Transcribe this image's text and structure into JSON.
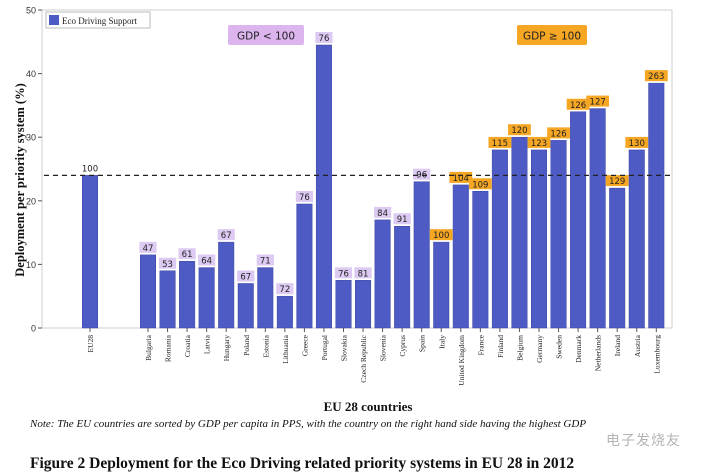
{
  "chart_data": {
    "type": "bar",
    "legend": {
      "label": "Eco Driving Support",
      "placement": "top-left",
      "color": "#4f5bc4"
    },
    "categories": [
      "EU28",
      "Bulgaria",
      "Romania",
      "Croatia",
      "Latvia",
      "Hungary",
      "Poland",
      "Estonia",
      "Lithuania",
      "Greece",
      "Portugal",
      "Slovakia",
      "Czech Republic",
      "Slovenia",
      "Cyprus",
      "Spain",
      "Italy",
      "United Kingdom",
      "France",
      "Finland",
      "Belgium",
      "Germany",
      "Sweden",
      "Denmark",
      "Netherlands",
      "Ireland",
      "Austria",
      "Luxembourg"
    ],
    "values": [
      24,
      11.5,
      9,
      10.5,
      9.5,
      13.5,
      7,
      9.5,
      5,
      19.5,
      44.5,
      7.5,
      7.5,
      17,
      16,
      23,
      13.5,
      22.5,
      21.5,
      28,
      30,
      28,
      29.5,
      34,
      34.5,
      22,
      28,
      38.5
    ],
    "gdp_labels": [
      "100",
      "47",
      "53",
      "61",
      "64",
      "67",
      "67",
      "71",
      "72",
      "76",
      "76",
      "76",
      "81",
      "84",
      "91",
      "96",
      "100",
      "104",
      "109",
      "115",
      "120",
      "123",
      "126",
      "126",
      "127",
      "129",
      "130",
      "263"
    ],
    "y_ticks": [
      "0",
      "10",
      "20",
      "30",
      "40",
      "50"
    ],
    "ylim": [
      0,
      50
    ],
    "reference_line": 24,
    "group_labels": [
      "GDP < 100",
      "GDP ≥ 100"
    ],
    "ylabel": "Deployment per priority system (%)",
    "xlabel": "EU 28 countries",
    "colors": {
      "bar": "#4f5bc4",
      "low_gdp_label_bg": "#dccaf2",
      "high_gdp_label_bg": "#f5a623",
      "group_low_bg": "#dcb5ee",
      "group_high_bg": "#f5a623"
    }
  },
  "note": "Note: The EU countries are sorted by GDP per capita in PPS, with the country on the right hand side having the highest GDP",
  "figure_caption": "Figure 2 Deployment for the Eco Driving related priority systems in EU 28 in 2012",
  "watermark": "电子发烧友"
}
